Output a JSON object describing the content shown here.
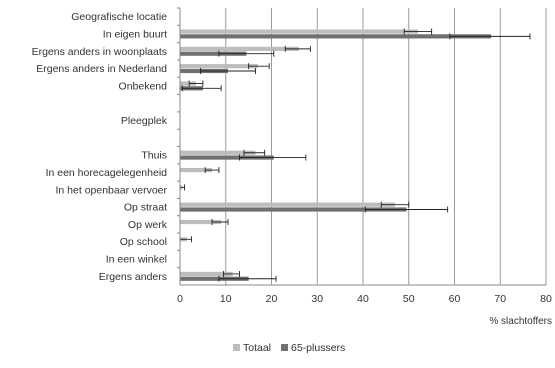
{
  "chart_data": {
    "type": "bar",
    "orientation": "horizontal",
    "xlabel": "% slachtoffers",
    "xlim": [
      0,
      80
    ],
    "xticks": [
      0,
      10,
      20,
      30,
      40,
      50,
      60,
      70,
      80
    ],
    "grid": true,
    "error_bars": true,
    "legend_position": "bottom",
    "categories": [
      "Geografische locatie",
      "In eigen buurt",
      "Ergens anders in woonplaats",
      "Ergens anders in Nederland",
      "Onbekend",
      "",
      "Pleegplek",
      "",
      "Thuis",
      "In een horecagelegenheid",
      "In het openbaar vervoer",
      "Op straat",
      "Op werk",
      "Op school",
      "In een winkel",
      "Ergens anders"
    ],
    "series": [
      {
        "name": "Totaal",
        "color": "#bdbdbd",
        "values": [
          null,
          52,
          26,
          17,
          3.5,
          null,
          null,
          null,
          16.5,
          7,
          0.5,
          47,
          9,
          1.5,
          0,
          11.5
        ],
        "error_low": [
          null,
          49,
          23,
          15,
          2,
          null,
          null,
          null,
          14,
          5.5,
          0,
          44,
          7,
          0,
          0,
          9.5
        ],
        "error_high": [
          null,
          55,
          28.5,
          19.5,
          5,
          null,
          null,
          null,
          18.5,
          8.5,
          1,
          50,
          10.5,
          2.5,
          0,
          13
        ]
      },
      {
        "name": "65-plussers",
        "color": "#707070",
        "values": [
          null,
          68,
          14.5,
          10.5,
          5,
          null,
          null,
          null,
          20.5,
          0,
          0,
          49.5,
          0,
          0,
          0,
          15
        ],
        "error_low": [
          null,
          59,
          8.5,
          4.5,
          0.5,
          null,
          null,
          null,
          13,
          null,
          null,
          40.5,
          null,
          null,
          null,
          8.5
        ],
        "error_high": [
          null,
          76.5,
          20.5,
          16.5,
          9,
          null,
          null,
          null,
          27.5,
          null,
          null,
          58.5,
          null,
          null,
          null,
          21
        ]
      }
    ]
  }
}
